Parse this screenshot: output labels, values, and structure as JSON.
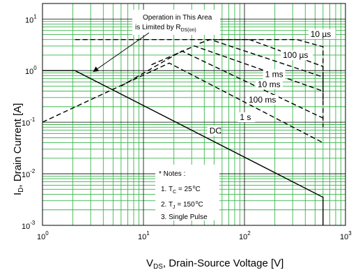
{
  "chart_data": {
    "type": "line",
    "title": "",
    "xlabel": "V",
    "xlabel_sub": "DS",
    "xlabel_rest": ", Drain-Source Voltage [V]",
    "ylabel": "I",
    "ylabel_sub": "D",
    "ylabel_rest": ", Drain Current [A]",
    "x_scale": "log",
    "y_scale": "log",
    "xlim": [
      1,
      1000
    ],
    "ylim": [
      0.001,
      20
    ],
    "grid": true,
    "x_ticks": [
      {
        "value": 1,
        "base": "10",
        "exp": "0"
      },
      {
        "value": 10,
        "base": "10",
        "exp": "1"
      },
      {
        "value": 100,
        "base": "10",
        "exp": "2"
      },
      {
        "value": 1000,
        "base": "10",
        "exp": "3"
      }
    ],
    "y_ticks": [
      {
        "value": 0.001,
        "base": "10",
        "exp": "-3"
      },
      {
        "value": 0.01,
        "base": "10",
        "exp": "-2"
      },
      {
        "value": 0.1,
        "base": "10",
        "exp": "-1"
      },
      {
        "value": 1,
        "base": "10",
        "exp": "0"
      },
      {
        "value": 10,
        "base": "10",
        "exp": "1"
      }
    ],
    "series": [
      {
        "label": "DC",
        "style": "solid",
        "label_at": [
          45,
          0.06
        ],
        "points": [
          [
            1,
            1
          ],
          [
            2.1,
            1
          ],
          [
            600,
            0.0035
          ],
          [
            600,
            0.001
          ]
        ]
      },
      {
        "label": "1 s",
        "style": "dashed",
        "label_at": [
          90,
          0.11
        ],
        "points": [
          [
            1,
            0.1
          ],
          [
            18,
            1.4
          ],
          [
            600,
            0.04
          ]
        ]
      },
      {
        "label": "100 ms",
        "style": "dashed",
        "label_at": [
          110,
          0.24
        ],
        "points": [
          [
            6,
            0.5
          ],
          [
            24,
            2.4
          ],
          [
            600,
            0.12
          ]
        ]
      },
      {
        "label": "10 ms",
        "style": "dashed",
        "label_at": [
          135,
          0.48
        ],
        "points": [
          [
            12,
            1.3
          ],
          [
            32,
            3
          ],
          [
            600,
            0.4
          ]
        ]
      },
      {
        "label": "1 ms",
        "style": "dashed",
        "label_at": [
          160,
          0.75
        ],
        "points": [
          [
            36,
            3.4
          ],
          [
            46,
            4
          ],
          [
            600,
            0.75
          ],
          [
            600,
            0.08
          ]
        ]
      },
      {
        "label": "100 µs",
        "style": "dashed",
        "label_at": [
          240,
          1.75
        ],
        "points": [
          [
            55,
            4
          ],
          [
            112,
            4
          ],
          [
            600,
            1.2
          ],
          [
            600,
            0.25
          ]
        ]
      },
      {
        "label": "10 µs",
        "style": "dashed",
        "label_at": [
          450,
          4.5
        ],
        "points": [
          [
            2.1,
            4
          ],
          [
            330,
            4
          ],
          [
            600,
            2.9
          ],
          [
            600,
            0.45
          ]
        ]
      }
    ],
    "annotations": {
      "limit_line1": "Operation in This Area",
      "limit_line2_main": "is Limited by R",
      "limit_line2_sub": "DS(on)",
      "notes_title": "* Notes :",
      "note1_pre": "1. T",
      "note1_sub": "C",
      "note1_post": " = 25",
      "note1_unit": "C",
      "note2_pre": "2. T",
      "note2_sub": "J",
      "note2_post": " = 150",
      "note2_unit": "C",
      "note3": "3. Single Pulse"
    }
  },
  "colors": {
    "grid": "#39b54a",
    "frame": "#000000",
    "line": "#000000",
    "background": "#ffffff"
  }
}
